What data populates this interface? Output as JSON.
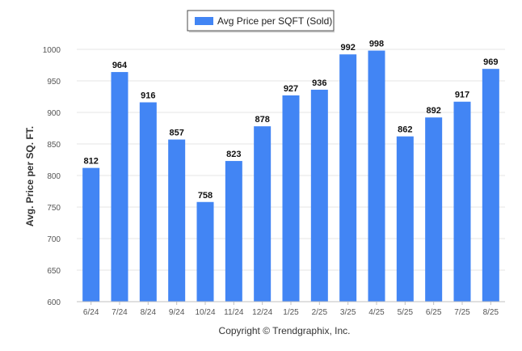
{
  "chart_data": {
    "type": "bar",
    "title": "",
    "xlabel": "",
    "ylabel": "Avg. Price per SQ. FT.",
    "categories": [
      "6/24",
      "7/24",
      "8/24",
      "9/24",
      "10/24",
      "11/24",
      "12/24",
      "1/25",
      "2/25",
      "3/25",
      "4/25",
      "5/25",
      "6/25",
      "7/25",
      "8/25"
    ],
    "series": [
      {
        "name": "Avg Price per SQFT (Sold)",
        "color": "#4285f4",
        "values": [
          812,
          964,
          916,
          857,
          758,
          823,
          878,
          927,
          936,
          992,
          998,
          862,
          892,
          917,
          969
        ]
      }
    ],
    "ylim": [
      600,
      1000
    ],
    "yticks": [
      600,
      650,
      700,
      750,
      800,
      850,
      900,
      950,
      1000
    ],
    "grid": true,
    "legend_position": "top-center",
    "data_labels": true
  },
  "footer": {
    "copyright": "Copyright © Trendgraphix, Inc."
  }
}
